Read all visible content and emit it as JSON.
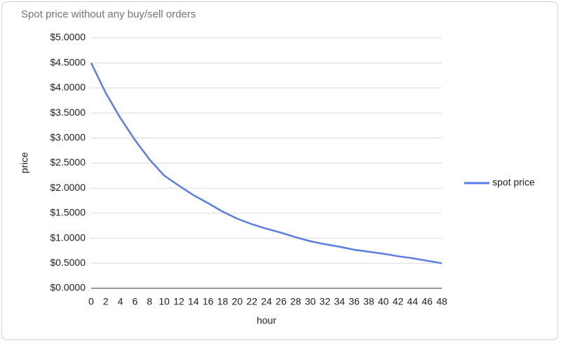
{
  "chart_data": {
    "type": "line",
    "title": "Spot price without any buy/sell orders",
    "x_label": "hour",
    "y_label": "price",
    "x": [
      0,
      2,
      4,
      6,
      8,
      10,
      12,
      14,
      16,
      18,
      20,
      22,
      24,
      26,
      28,
      30,
      32,
      34,
      36,
      38,
      40,
      42,
      44,
      46,
      48
    ],
    "series": [
      {
        "name": "spot price",
        "color": "#5a7de6",
        "values": [
          4.5,
          3.9,
          3.4,
          2.96,
          2.57,
          2.25,
          2.05,
          1.86,
          1.7,
          1.53,
          1.39,
          1.28,
          1.19,
          1.11,
          1.02,
          0.94,
          0.88,
          0.83,
          0.77,
          0.73,
          0.69,
          0.64,
          0.6,
          0.55,
          0.5
        ]
      }
    ],
    "xlim": [
      0,
      48
    ],
    "xticks": [
      0,
      2,
      4,
      6,
      8,
      10,
      12,
      14,
      16,
      18,
      20,
      22,
      24,
      26,
      28,
      30,
      32,
      34,
      36,
      38,
      40,
      42,
      44,
      46,
      48
    ],
    "ylim": [
      0,
      5
    ],
    "yticks": [
      {
        "value": 0,
        "label": "$0.0000"
      },
      {
        "value": 0.5,
        "label": "$0.5000"
      },
      {
        "value": 1,
        "label": "$1.0000"
      },
      {
        "value": 1.5,
        "label": "$1.5000"
      },
      {
        "value": 2,
        "label": "$2.0000"
      },
      {
        "value": 2.5,
        "label": "$2.5000"
      },
      {
        "value": 3,
        "label": "$3.0000"
      },
      {
        "value": 3.5,
        "label": "$3.5000"
      },
      {
        "value": 4,
        "label": "$4.0000"
      },
      {
        "value": 4.5,
        "label": "$4.5000"
      },
      {
        "value": 5,
        "label": "$5.0000"
      }
    ],
    "grid": true,
    "legend_position": "right"
  }
}
